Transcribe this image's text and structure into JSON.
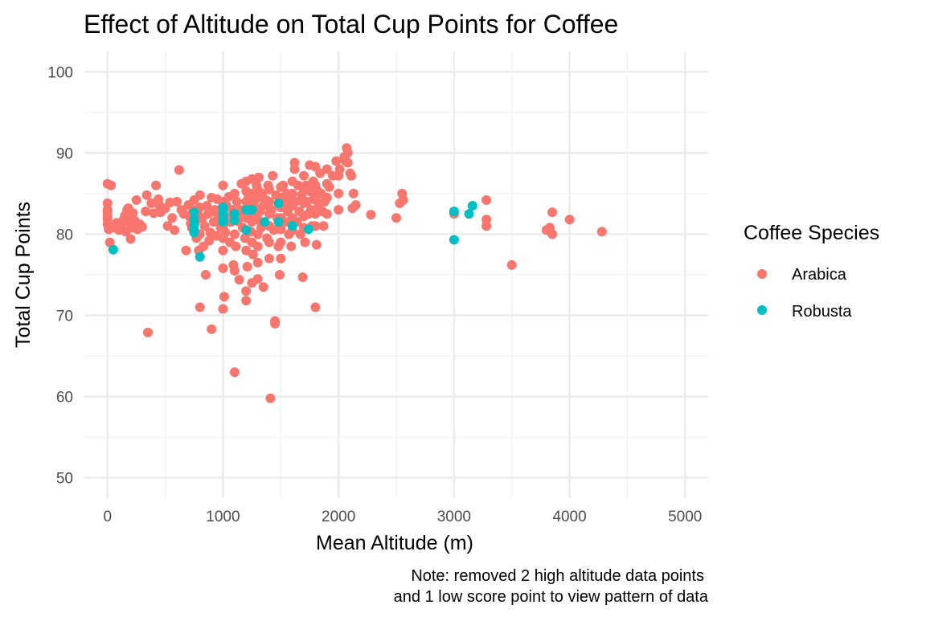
{
  "chart_data": {
    "type": "scatter",
    "title": "Effect of Altitude on Total Cup Points for Coffee",
    "xlabel": "Mean Altitude (m)",
    "ylabel": "Total Cup Points",
    "caption_lines": [
      "Note: removed 2 high altitude data points",
      "and 1 low score point to view pattern of data"
    ],
    "xlim": [
      -200,
      5200
    ],
    "ylim": [
      47.5,
      102.5
    ],
    "x_ticks": [
      0,
      1000,
      2000,
      3000,
      4000,
      5000
    ],
    "x_tick_labels": [
      "0",
      "1000",
      "2000",
      "3000",
      "4000",
      "5000"
    ],
    "y_ticks": [
      50,
      60,
      70,
      80,
      90,
      100
    ],
    "y_tick_labels": [
      "50",
      "60",
      "70",
      "80",
      "90",
      "100"
    ],
    "x_minor_ticks": [
      500,
      1500,
      2500,
      3500,
      4500
    ],
    "y_minor_ticks": [
      55,
      65,
      75,
      85,
      95
    ],
    "grid": true,
    "legend": {
      "title": "Coffee Species",
      "position": "right"
    },
    "series": [
      {
        "name": "Arabica",
        "color": "#F8766D",
        "points": [
          [
            0,
            86.2
          ],
          [
            0,
            83.8
          ],
          [
            0,
            83.0
          ],
          [
            0,
            82.6
          ],
          [
            0,
            82.2
          ],
          [
            0,
            81.8
          ],
          [
            0,
            81.2
          ],
          [
            10,
            80.6
          ],
          [
            20,
            79.0
          ],
          [
            30,
            86.0
          ],
          [
            60,
            80.8
          ],
          [
            80,
            81.4
          ],
          [
            100,
            80.5
          ],
          [
            120,
            81.0
          ],
          [
            140,
            81.8
          ],
          [
            150,
            82.3
          ],
          [
            160,
            80.3
          ],
          [
            170,
            83.0
          ],
          [
            180,
            83.2
          ],
          [
            190,
            82.0
          ],
          [
            200,
            81.3
          ],
          [
            200,
            79.4
          ],
          [
            210,
            80.8
          ],
          [
            220,
            82.6
          ],
          [
            240,
            81.6
          ],
          [
            250,
            84.2
          ],
          [
            260,
            80.6
          ],
          [
            280,
            81.2
          ],
          [
            300,
            80.9
          ],
          [
            330,
            82.8
          ],
          [
            340,
            84.8
          ],
          [
            350,
            67.9
          ],
          [
            380,
            83.8
          ],
          [
            400,
            82.6
          ],
          [
            420,
            86.0
          ],
          [
            440,
            84.3
          ],
          [
            450,
            83.5
          ],
          [
            460,
            82.7
          ],
          [
            500,
            83.2
          ],
          [
            520,
            81.0
          ],
          [
            540,
            83.9
          ],
          [
            560,
            82.0
          ],
          [
            580,
            80.5
          ],
          [
            600,
            84.0
          ],
          [
            620,
            87.9
          ],
          [
            640,
            83.0
          ],
          [
            660,
            82.5
          ],
          [
            680,
            78.0
          ],
          [
            700,
            83.6
          ],
          [
            710,
            82.2
          ],
          [
            720,
            81.3
          ],
          [
            730,
            80.8
          ],
          [
            740,
            83.0
          ],
          [
            750,
            84.2
          ],
          [
            760,
            81.5
          ],
          [
            770,
            79.5
          ],
          [
            780,
            82.8
          ],
          [
            790,
            78.0
          ],
          [
            800,
            84.8
          ],
          [
            800,
            83.3
          ],
          [
            800,
            80.0
          ],
          [
            800,
            71.0
          ],
          [
            820,
            82.0
          ],
          [
            830,
            78.5
          ],
          [
            840,
            81.0
          ],
          [
            850,
            75.0
          ],
          [
            860,
            83.5
          ],
          [
            870,
            82.5
          ],
          [
            880,
            79.2
          ],
          [
            890,
            80.2
          ],
          [
            900,
            84.5
          ],
          [
            900,
            68.3
          ],
          [
            910,
            82.8
          ],
          [
            920,
            81.5
          ],
          [
            930,
            83.0
          ],
          [
            940,
            79.8
          ],
          [
            950,
            84.3
          ],
          [
            960,
            82.0
          ],
          [
            980,
            80.8
          ],
          [
            990,
            83.2
          ],
          [
            1000,
            86.0
          ],
          [
            1000,
            84.0
          ],
          [
            1000,
            82.5
          ],
          [
            1000,
            81.0
          ],
          [
            1000,
            79.5
          ],
          [
            1000,
            78.0
          ],
          [
            1000,
            75.8
          ],
          [
            1000,
            70.8
          ],
          [
            1010,
            72.3
          ],
          [
            1020,
            80.2
          ],
          [
            1030,
            83.5
          ],
          [
            1040,
            82.0
          ],
          [
            1050,
            84.6
          ],
          [
            1060,
            79.0
          ],
          [
            1070,
            81.5
          ],
          [
            1080,
            83.0
          ],
          [
            1090,
            76.2
          ],
          [
            1100,
            85.0
          ],
          [
            1100,
            82.4
          ],
          [
            1100,
            80.0
          ],
          [
            1100,
            75.5
          ],
          [
            1100,
            63.0
          ],
          [
            1110,
            78.5
          ],
          [
            1120,
            84.0
          ],
          [
            1130,
            81.6
          ],
          [
            1140,
            74.4
          ],
          [
            1150,
            83.0
          ],
          [
            1160,
            86.2
          ],
          [
            1170,
            80.8
          ],
          [
            1180,
            82.5
          ],
          [
            1190,
            79.5
          ],
          [
            1200,
            86.5
          ],
          [
            1200,
            85.3
          ],
          [
            1200,
            84.0
          ],
          [
            1200,
            83.0
          ],
          [
            1200,
            82.0
          ],
          [
            1200,
            80.5
          ],
          [
            1200,
            78.0
          ],
          [
            1200,
            73.0
          ],
          [
            1200,
            71.8
          ],
          [
            1210,
            76.0
          ],
          [
            1220,
            84.5
          ],
          [
            1230,
            82.5
          ],
          [
            1240,
            80.3
          ],
          [
            1250,
            86.8
          ],
          [
            1250,
            85.0
          ],
          [
            1250,
            83.5
          ],
          [
            1250,
            81.5
          ],
          [
            1250,
            79.0
          ],
          [
            1250,
            74.0
          ],
          [
            1260,
            77.5
          ],
          [
            1270,
            84.0
          ],
          [
            1280,
            82.0
          ],
          [
            1290,
            86.0
          ],
          [
            1300,
            85.5
          ],
          [
            1300,
            84.5
          ],
          [
            1300,
            83.0
          ],
          [
            1300,
            81.8
          ],
          [
            1300,
            80.0
          ],
          [
            1300,
            78.5
          ],
          [
            1300,
            76.5
          ],
          [
            1300,
            74.5
          ],
          [
            1310,
            87.0
          ],
          [
            1320,
            82.8
          ],
          [
            1330,
            80.8
          ],
          [
            1340,
            85.0
          ],
          [
            1350,
            73.5
          ],
          [
            1350,
            83.5
          ],
          [
            1360,
            81.2
          ],
          [
            1370,
            84.2
          ],
          [
            1380,
            79.5
          ],
          [
            1390,
            86.0
          ],
          [
            1400,
            85.5
          ],
          [
            1400,
            84.0
          ],
          [
            1400,
            82.5
          ],
          [
            1400,
            81.0
          ],
          [
            1400,
            79.0
          ],
          [
            1400,
            77.0
          ],
          [
            1410,
            59.8
          ],
          [
            1420,
            83.0
          ],
          [
            1430,
            87.2
          ],
          [
            1440,
            80.5
          ],
          [
            1450,
            69.3
          ],
          [
            1450,
            69.0
          ],
          [
            1460,
            84.8
          ],
          [
            1470,
            82.0
          ],
          [
            1480,
            78.5
          ],
          [
            1490,
            75.0
          ],
          [
            1500,
            85.8
          ],
          [
            1500,
            84.5
          ],
          [
            1500,
            83.3
          ],
          [
            1500,
            82.0
          ],
          [
            1500,
            80.6
          ],
          [
            1500,
            79.0
          ],
          [
            1500,
            77.0
          ],
          [
            1520,
            86.0
          ],
          [
            1530,
            83.8
          ],
          [
            1540,
            81.5
          ],
          [
            1550,
            85.0
          ],
          [
            1560,
            82.8
          ],
          [
            1570,
            80.0
          ],
          [
            1580,
            84.2
          ],
          [
            1590,
            78.5
          ],
          [
            1600,
            86.5
          ],
          [
            1600,
            85.0
          ],
          [
            1600,
            83.5
          ],
          [
            1600,
            82.0
          ],
          [
            1600,
            80.5
          ],
          [
            1620,
            88.8
          ],
          [
            1620,
            88.0
          ],
          [
            1630,
            84.0
          ],
          [
            1640,
            81.5
          ],
          [
            1650,
            86.0
          ],
          [
            1660,
            82.8
          ],
          [
            1670,
            80.0
          ],
          [
            1680,
            84.8
          ],
          [
            1690,
            74.7
          ],
          [
            1700,
            87.2
          ],
          [
            1700,
            85.5
          ],
          [
            1700,
            83.8
          ],
          [
            1700,
            82.2
          ],
          [
            1700,
            80.8
          ],
          [
            1710,
            79.0
          ],
          [
            1720,
            86.0
          ],
          [
            1730,
            84.0
          ],
          [
            1740,
            82.5
          ],
          [
            1750,
            88.5
          ],
          [
            1750,
            85.3
          ],
          [
            1760,
            83.0
          ],
          [
            1770,
            81.0
          ],
          [
            1780,
            86.5
          ],
          [
            1790,
            84.5
          ],
          [
            1800,
            71.0
          ],
          [
            1800,
            88.3
          ],
          [
            1800,
            86.0
          ],
          [
            1800,
            84.2
          ],
          [
            1800,
            82.5
          ],
          [
            1800,
            81.0
          ],
          [
            1810,
            78.7
          ],
          [
            1820,
            85.3
          ],
          [
            1830,
            83.5
          ],
          [
            1840,
            87.5
          ],
          [
            1850,
            85.0
          ],
          [
            1860,
            82.8
          ],
          [
            1870,
            81.0
          ],
          [
            1880,
            84.0
          ],
          [
            1900,
            88.0
          ],
          [
            1900,
            86.2
          ],
          [
            1900,
            84.5
          ],
          [
            1900,
            82.5
          ],
          [
            1920,
            85.8
          ],
          [
            1950,
            87.2
          ],
          [
            1980,
            89.0
          ],
          [
            2000,
            87.2
          ],
          [
            2000,
            85.0
          ],
          [
            2000,
            83.0
          ],
          [
            2010,
            88.0
          ],
          [
            2050,
            89.5
          ],
          [
            2060,
            89.0
          ],
          [
            2070,
            90.6
          ],
          [
            2080,
            90.0
          ],
          [
            2080,
            88.8
          ],
          [
            2100,
            87.5
          ],
          [
            2110,
            87.2
          ],
          [
            2120,
            83.2
          ],
          [
            2130,
            85.0
          ],
          [
            2150,
            83.6
          ],
          [
            2280,
            82.4
          ],
          [
            2500,
            82.0
          ],
          [
            2530,
            83.8
          ],
          [
            2550,
            85.0
          ],
          [
            2560,
            84.2
          ],
          [
            3000,
            82.5
          ],
          [
            3280,
            84.2
          ],
          [
            3280,
            81.8
          ],
          [
            3280,
            81.0
          ],
          [
            3500,
            76.2
          ],
          [
            3800,
            80.5
          ],
          [
            3830,
            80.8
          ],
          [
            3850,
            82.7
          ],
          [
            3850,
            80.0
          ],
          [
            4000,
            81.8
          ],
          [
            4280,
            80.3
          ]
        ]
      },
      {
        "name": "Robusta",
        "color": "#00BFC4",
        "points": [
          [
            50,
            78.1
          ],
          [
            750,
            82.7
          ],
          [
            750,
            81.8
          ],
          [
            750,
            81.1
          ],
          [
            750,
            80.6
          ],
          [
            750,
            80.2
          ],
          [
            800,
            77.2
          ],
          [
            1000,
            83.3
          ],
          [
            1000,
            82.6
          ],
          [
            1000,
            81.9
          ],
          [
            1000,
            81.5
          ],
          [
            1100,
            82.5
          ],
          [
            1100,
            81.7
          ],
          [
            1200,
            83.0
          ],
          [
            1200,
            80.5
          ],
          [
            1250,
            83.0
          ],
          [
            1360,
            81.5
          ],
          [
            1480,
            83.8
          ],
          [
            1480,
            81.5
          ],
          [
            1600,
            81.0
          ],
          [
            1740,
            80.6
          ],
          [
            3000,
            82.8
          ],
          [
            3000,
            79.3
          ],
          [
            3130,
            82.5
          ],
          [
            3160,
            83.5
          ]
        ]
      }
    ]
  }
}
